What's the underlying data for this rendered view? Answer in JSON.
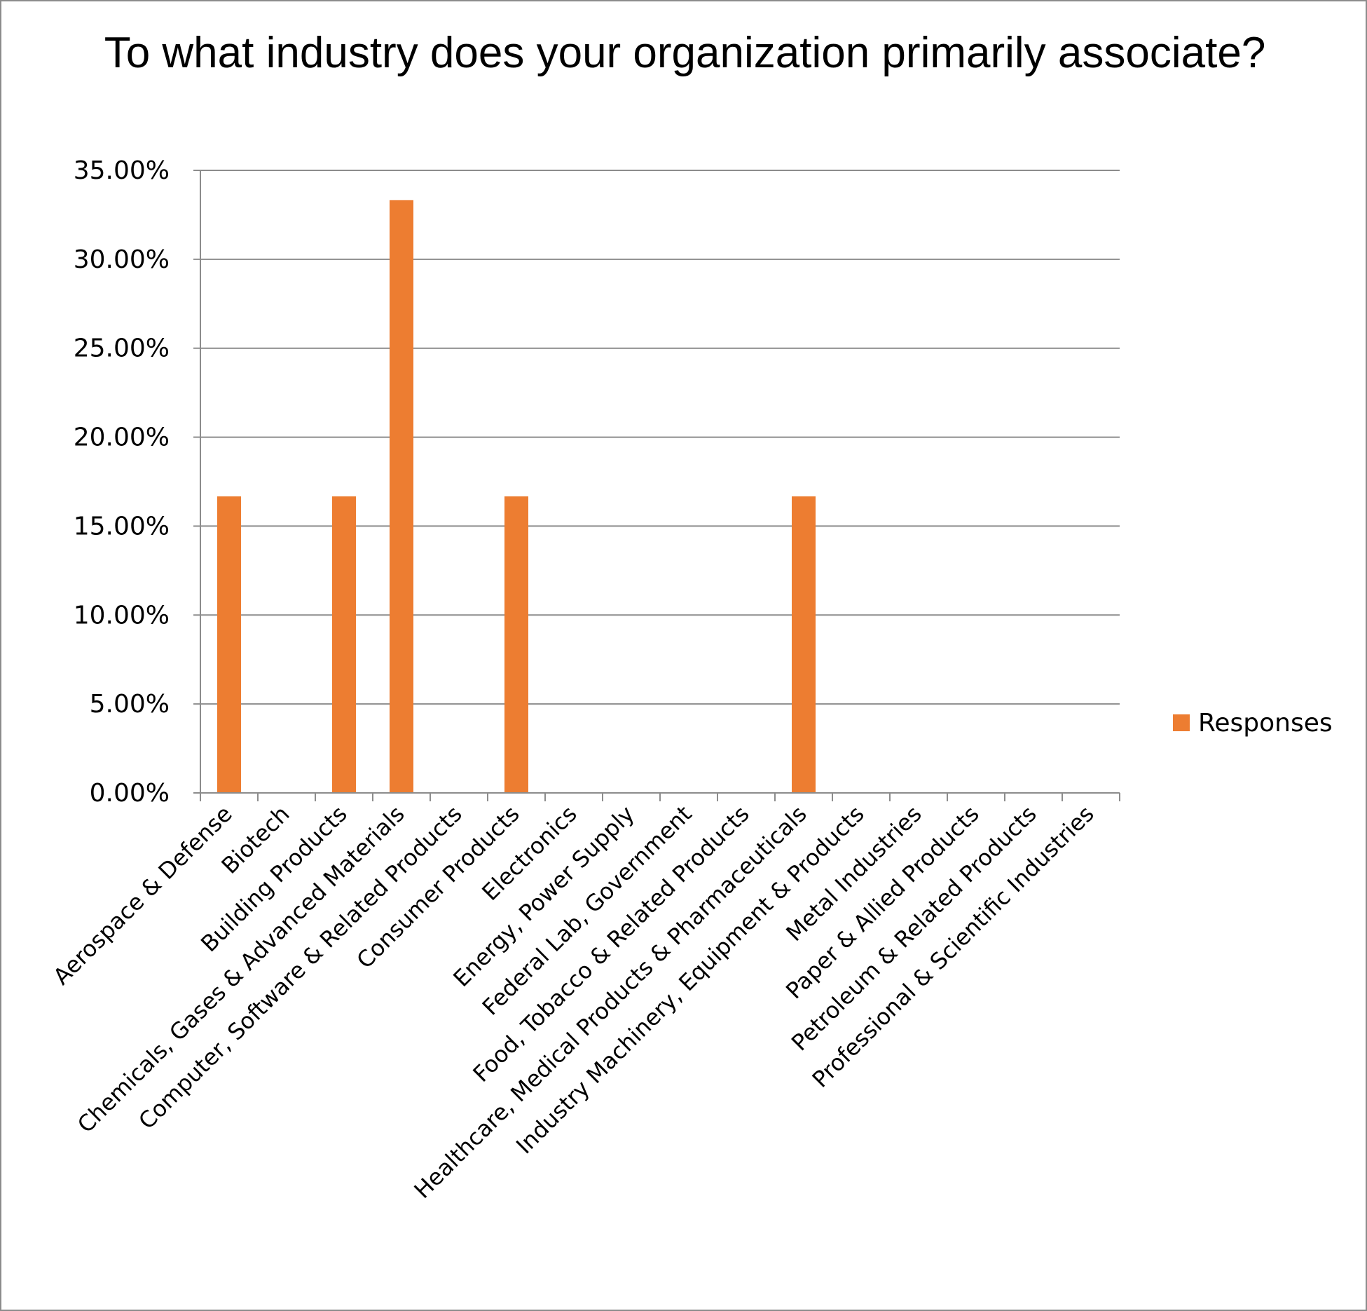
{
  "chart_data": {
    "type": "bar",
    "title": "To what industry does your organization primarily associate?",
    "categories": [
      "Aerospace & Defense",
      "Biotech",
      "Building Products",
      "Chemicals, Gases & Advanced Materials",
      "Computer, Software & Related Products",
      "Consumer Products",
      "Electronics",
      "Energy, Power Supply",
      "Federal Lab, Government",
      "Food, Tobacco & Related Products",
      "Healthcare, Medical Products & Pharmaceuticals",
      "Industry Machinery, Equipment & Products",
      "Metal Industries",
      "Paper & Allied Products",
      "Petroleum & Related Products",
      "Professional & Scientific Industries"
    ],
    "series": [
      {
        "name": "Responses",
        "values": [
          16.67,
          0,
          16.67,
          33.33,
          0,
          16.67,
          0,
          0,
          0,
          0,
          16.67,
          0,
          0,
          0,
          0,
          0
        ]
      }
    ],
    "ylim": [
      0,
      35
    ],
    "yticks": [
      "0.00%",
      "5.00%",
      "10.00%",
      "15.00%",
      "20.00%",
      "25.00%",
      "30.00%",
      "35.00%"
    ],
    "xlabel": "",
    "ylabel": "",
    "grid": true,
    "legend": "right",
    "bar_color": "#ED7D31",
    "grid_color": "#8C8C8C"
  }
}
